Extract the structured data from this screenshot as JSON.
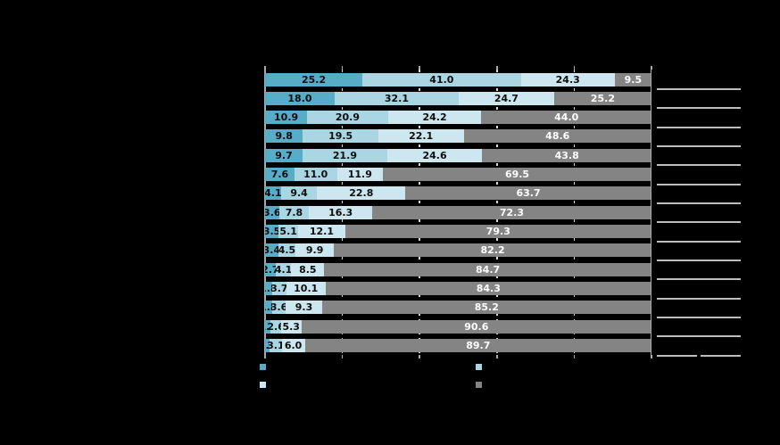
{
  "canvas": {
    "background": "#000000"
  },
  "chart_data": {
    "type": "bar",
    "orientation": "horizontal",
    "stacked": true,
    "num_rows": 15,
    "xlim": [
      0,
      100
    ],
    "grid": "dashed vertical gridlines at 20,40,60,80; solid edge lines at 0 and 100",
    "gridline_percents": [
      20,
      40,
      60,
      80
    ],
    "tick_percents": [
      0,
      20,
      40,
      60,
      80,
      100
    ],
    "series": [
      {
        "name": "segment-1-teal",
        "color": "#57acc8"
      },
      {
        "name": "segment-2-light-blue",
        "color": "#a9d6e2"
      },
      {
        "name": "segment-3-pale-blue",
        "color": "#cde7f0"
      },
      {
        "name": "segment-4-gray",
        "color": "#848484"
      }
    ],
    "value_label_colors": [
      "#0d0d0d",
      "#0d0d0d",
      "#0d0d0d",
      "#ffffff"
    ],
    "rows": [
      {
        "values": [
          25.2,
          41.0,
          24.3,
          9.5
        ],
        "labels": [
          "25.2",
          "41.0",
          "24.3",
          "9.5"
        ]
      },
      {
        "values": [
          18.0,
          32.1,
          24.7,
          25.2
        ],
        "labels": [
          "18.0",
          "32.1",
          "24.7",
          "25.2"
        ]
      },
      {
        "values": [
          10.9,
          20.9,
          24.2,
          44.0
        ],
        "labels": [
          "10.9",
          "20.9",
          "24.2",
          "44.0"
        ]
      },
      {
        "values": [
          9.8,
          19.5,
          22.1,
          48.6
        ],
        "labels": [
          "9.8",
          "19.5",
          "22.1",
          "48.6"
        ]
      },
      {
        "values": [
          9.7,
          21.9,
          24.6,
          43.8
        ],
        "labels": [
          "9.7",
          "21.9",
          "24.6",
          "43.8"
        ]
      },
      {
        "values": [
          7.6,
          11.0,
          11.9,
          69.5
        ],
        "labels": [
          "7.6",
          "11.0",
          "11.9",
          "69.5"
        ]
      },
      {
        "values": [
          4.1,
          9.4,
          22.8,
          63.7
        ],
        "labels": [
          "4.1",
          "9.4",
          "22.8",
          "63.7"
        ]
      },
      {
        "values": [
          3.6,
          7.8,
          16.3,
          72.3
        ],
        "labels": [
          "3.6",
          "7.8",
          "16.3",
          "72.3"
        ]
      },
      {
        "values": [
          3.5,
          5.1,
          12.1,
          79.3
        ],
        "labels": [
          "3.5",
          "5.1",
          "12.1",
          "79.3"
        ]
      },
      {
        "values": [
          3.4,
          4.5,
          9.9,
          82.2
        ],
        "labels": [
          "3.4",
          "4.5",
          "9.9",
          "82.2"
        ]
      },
      {
        "values": [
          2.7,
          4.1,
          8.5,
          84.7
        ],
        "labels": [
          "2.7",
          "4.1",
          "8.5",
          "84.7"
        ]
      },
      {
        "values": [
          1.8,
          3.7,
          10.1,
          84.3
        ],
        "labels": [
          "1.8",
          "3.7",
          "10.1",
          "84.3"
        ]
      },
      {
        "values": [
          1.8,
          3.6,
          9.3,
          85.2
        ],
        "labels": [
          "1.8",
          "3.6",
          "9.3",
          "85.2"
        ]
      },
      {
        "values": [
          1.5,
          2.6,
          5.3,
          90.6
        ],
        "labels": [
          "1.5",
          "2.6",
          "5.3",
          "90.6"
        ]
      },
      {
        "values": [
          1.2,
          3.1,
          6.0,
          89.7
        ],
        "labels": [
          "1.2",
          "3.1",
          "6.0",
          "89.7"
        ]
      }
    ],
    "right_side_lines": {
      "one_per_row": true,
      "count": 15,
      "last_row_split_in_two": true,
      "color": "#bdbdbd"
    },
    "legend": {
      "layout": "2x2 color swatches, labels not visible",
      "grid": [
        {
          "position": "top-left",
          "series_index": 0,
          "color": "#57acc8"
        },
        {
          "position": "top-right",
          "series_index": 1,
          "color": "#a9d6e2"
        },
        {
          "position": "bottom-left",
          "series_index": 2,
          "color": "#cde7f0"
        },
        {
          "position": "bottom-right",
          "series_index": 3,
          "color": "#848484"
        }
      ]
    }
  }
}
